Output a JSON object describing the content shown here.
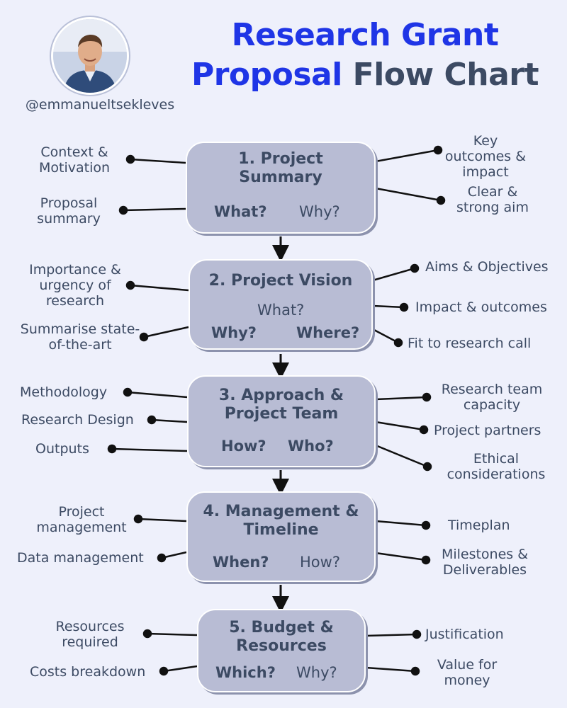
{
  "header": {
    "handle": "@emmanueltsekleves",
    "title_line1": "Research Grant",
    "title_line2_highlight": "Proposal",
    "title_line2_rest": "Flow Chart",
    "highlight_color": "#1f35e6"
  },
  "steps": [
    {
      "title": "1. Project Summary",
      "questions": [
        "What?",
        "Why?"
      ],
      "left": [
        "Context & Motivation",
        "Proposal summary"
      ],
      "right": [
        "Key outcomes & impact",
        "Clear & strong aim"
      ]
    },
    {
      "title": "2. Project Vision",
      "questions": [
        "What?",
        "Why?",
        "Where?"
      ],
      "left": [
        "Importance & urgency of research",
        "Summarise state-of-the-art"
      ],
      "right": [
        "Aims & Objectives",
        "Impact & outcomes",
        "Fit to research call"
      ]
    },
    {
      "title": "3. Approach & Project Team",
      "questions": [
        "How?",
        "Who?"
      ],
      "left": [
        "Methodology",
        "Research Design",
        "Outputs"
      ],
      "right": [
        "Research team capacity",
        "Project partners",
        "Ethical considerations"
      ]
    },
    {
      "title": "4. Management & Timeline",
      "questions": [
        "When?",
        "How?"
      ],
      "left": [
        "Project management",
        "Data management"
      ],
      "right": [
        "Timeplan",
        "Milestones & Deliverables"
      ]
    },
    {
      "title": "5. Budget & Resources",
      "questions": [
        "Which?",
        "Why?"
      ],
      "left": [
        "Resources required",
        "Costs breakdown"
      ],
      "right": [
        "Justification",
        "Value for money"
      ]
    }
  ]
}
